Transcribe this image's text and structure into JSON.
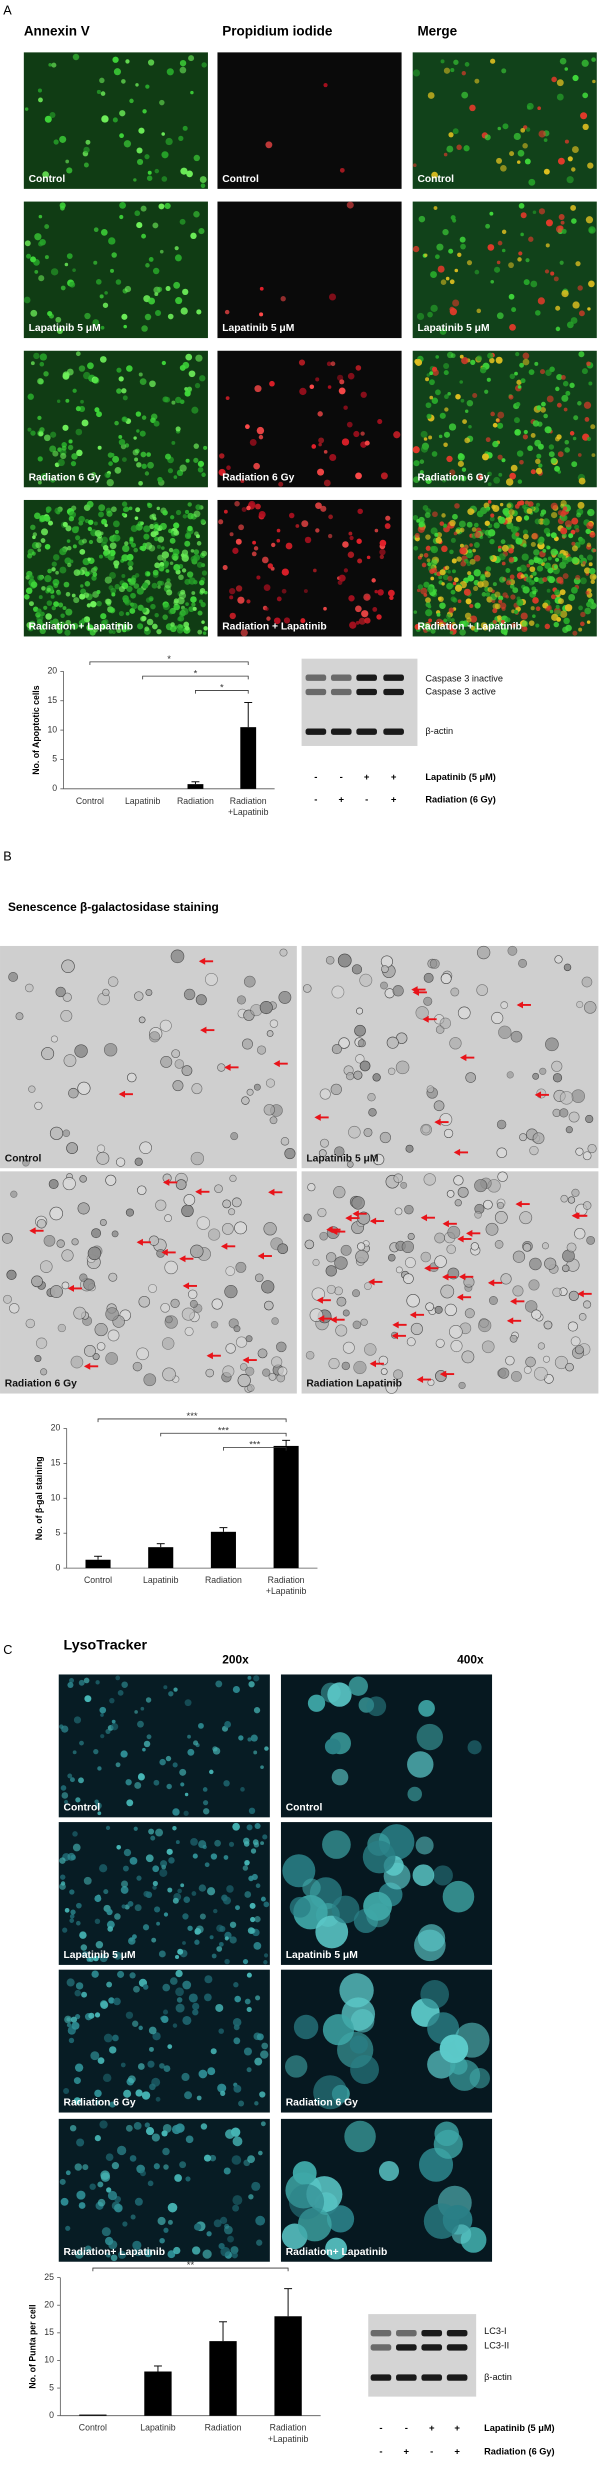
{
  "panel_a": {
    "label": "A",
    "headers": [
      "Annexin V",
      "Propidium iodide",
      "Merge"
    ],
    "rows": [
      "Control",
      "Lapatinib 5 μM",
      "Radiation 6 Gy",
      "Radiation + Lapatinib"
    ],
    "chart": {
      "type": "bar",
      "y_label": "No. of Apoptotic cells",
      "categories": [
        [
          "Control"
        ],
        [
          "Lapatinib"
        ],
        [
          "Radiation"
        ],
        [
          "Radiation",
          "+Lapatinib"
        ]
      ],
      "values": [
        0,
        0,
        0.8,
        10.5
      ],
      "errors": [
        0,
        0,
        0.4,
        4.2
      ],
      "color": "#000000",
      "ylim": [
        0,
        20
      ],
      "yticks": [
        0,
        5,
        10,
        15,
        20
      ],
      "significance": [
        "*",
        "*",
        "*"
      ]
    },
    "blot": {
      "bands": [
        "Caspase 3 inactive",
        "Caspase 3 active",
        "β-actin"
      ],
      "conditions": [
        {
          "name": "Lapatinib (5 μM)",
          "signs": [
            "-",
            "-",
            "+",
            "+"
          ]
        },
        {
          "name": "Radiation (6 Gy)",
          "signs": [
            "-",
            "+",
            "-",
            "+"
          ]
        }
      ]
    }
  },
  "panel_b": {
    "label": "B",
    "title": "Senescence β-galactosidase staining",
    "images": [
      "Control",
      "Lapatinib 5 μM",
      "Radiation 6 Gy",
      "Radiation Lapatinib"
    ],
    "chart": {
      "type": "bar",
      "y_label": "No. of β-gal staining",
      "categories": [
        [
          "Control"
        ],
        [
          "Lapatinib"
        ],
        [
          "Radiation"
        ],
        [
          "Radiation",
          "+Lapatinib"
        ]
      ],
      "values": [
        1.2,
        3,
        5.2,
        17.5
      ],
      "errors": [
        0.5,
        0.5,
        0.6,
        0.8
      ],
      "color": "#000000",
      "ylim": [
        0,
        20
      ],
      "yticks": [
        0,
        5,
        10,
        15,
        20
      ],
      "significance": [
        "***",
        "***",
        "***"
      ]
    }
  },
  "panel_c": {
    "label": "C",
    "title": "LysoTracker",
    "magnifications": [
      "200x",
      "400x"
    ],
    "rows": [
      "Control",
      "Lapatinib 5 μM",
      "Radiation 6 Gy",
      "Radiation+ Lapatinib"
    ],
    "chart": {
      "type": "bar",
      "y_label": "No. of Punta per cell",
      "categories": [
        [
          "Control"
        ],
        [
          "Lapatinib"
        ],
        [
          "Radiation"
        ],
        [
          "Radiation",
          "+Lapatinib"
        ]
      ],
      "values": [
        0.2,
        8,
        13.5,
        18
      ],
      "errors": [
        0,
        1,
        3.5,
        5
      ],
      "color": "#000000",
      "ylim": [
        0,
        25
      ],
      "yticks": [
        0,
        5,
        10,
        15,
        20,
        25
      ],
      "significance": [
        "**"
      ]
    },
    "blot": {
      "bands": [
        "LC3-I",
        "LC3-II",
        "β-actin"
      ],
      "conditions": [
        {
          "name": "Lapatinib (5 μM)",
          "signs": [
            "-",
            "-",
            "+",
            "+"
          ]
        },
        {
          "name": "Radiation (6 Gy)",
          "signs": [
            "-",
            "+",
            "-",
            "+"
          ]
        }
      ]
    }
  }
}
